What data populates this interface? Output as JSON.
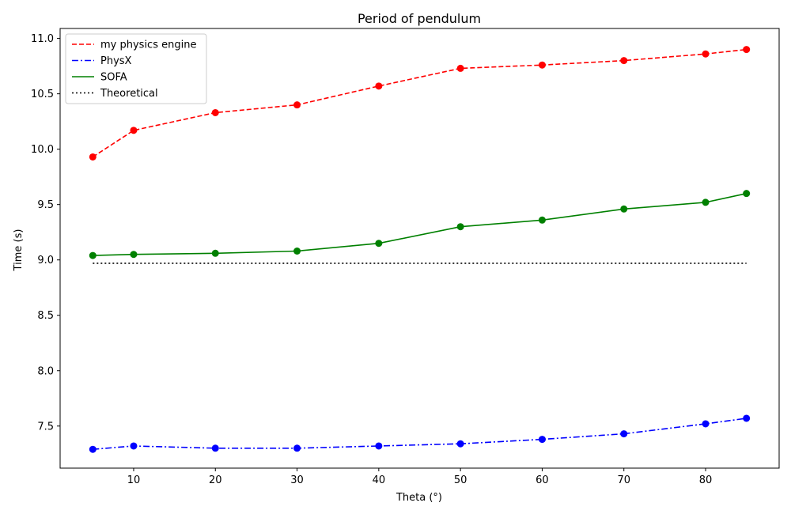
{
  "chart_data": {
    "type": "line",
    "title": "Period of pendulum",
    "xlabel": "Theta (°)",
    "ylabel": "Time (s)",
    "xlim": [
      1,
      89
    ],
    "ylim": [
      7.12,
      11.09
    ],
    "xticks": [
      10,
      20,
      30,
      40,
      50,
      60,
      70,
      80
    ],
    "yticks": [
      7.5,
      8.0,
      8.5,
      9.0,
      9.5,
      10.0,
      10.5,
      11.0
    ],
    "ytick_labels": [
      "7.5",
      "8.0",
      "8.5",
      "9.0",
      "9.5",
      "10.0",
      "10.5",
      "11.0"
    ],
    "x": [
      5,
      10,
      20,
      30,
      40,
      50,
      60,
      70,
      80,
      85
    ],
    "legend_position": "upper-left",
    "grid": false,
    "series": [
      {
        "name": "my physics engine",
        "color": "#ff0000",
        "line_style": "dashed",
        "markers": true,
        "values": [
          9.93,
          10.17,
          10.33,
          10.4,
          10.57,
          10.73,
          10.76,
          10.8,
          10.86,
          10.9
        ]
      },
      {
        "name": "PhysX",
        "color": "#0000ff",
        "line_style": "dashdot",
        "markers": true,
        "values": [
          7.29,
          7.32,
          7.3,
          7.3,
          7.32,
          7.34,
          7.38,
          7.43,
          7.52,
          7.57
        ]
      },
      {
        "name": "SOFA",
        "color": "#008000",
        "line_style": "solid",
        "markers": true,
        "values": [
          9.04,
          9.05,
          9.06,
          9.08,
          9.15,
          9.3,
          9.36,
          9.46,
          9.52,
          9.6
        ]
      },
      {
        "name": "Theoretical",
        "color": "#000000",
        "line_style": "dotted",
        "markers": false,
        "values": [
          8.97,
          8.97,
          8.97,
          8.97,
          8.97,
          8.97,
          8.97,
          8.97,
          8.97,
          8.97
        ]
      }
    ]
  }
}
